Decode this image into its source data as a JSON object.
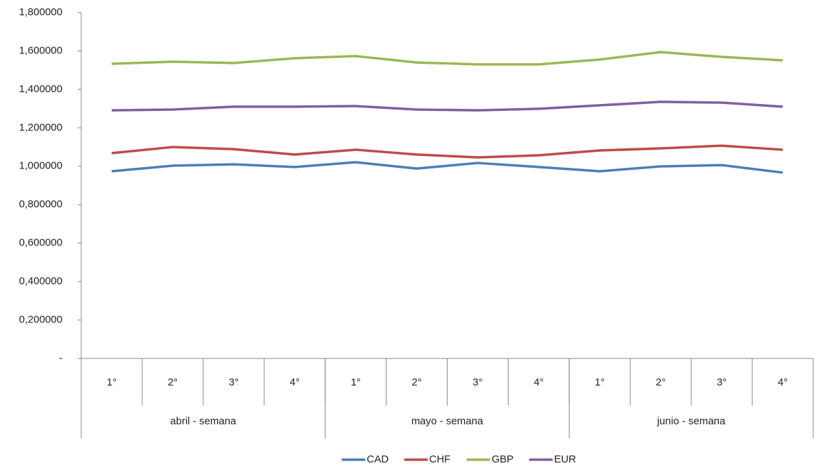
{
  "chart_data": {
    "type": "line",
    "categories": [
      "1°",
      "2°",
      "3°",
      "4°",
      "1°",
      "2°",
      "3°",
      "4°",
      "1°",
      "2°",
      "3°",
      "4°"
    ],
    "category_groups": [
      "abril - semana",
      "mayo - semana",
      "junio - semana"
    ],
    "series": [
      {
        "name": "CAD",
        "color": "#4a7ebb",
        "values": [
          0.974,
          1.003,
          1.01,
          0.996,
          1.021,
          0.988,
          1.017,
          0.996,
          0.974,
          0.999,
          1.006,
          0.967
        ]
      },
      {
        "name": "CHF",
        "color": "#be4b48",
        "values": [
          1.068,
          1.1,
          1.089,
          1.061,
          1.086,
          1.061,
          1.046,
          1.057,
          1.082,
          1.093,
          1.107,
          1.086
        ]
      },
      {
        "name": "GBP",
        "color": "#98b954",
        "values": [
          1.533,
          1.544,
          1.537,
          1.562,
          1.573,
          1.54,
          1.53,
          1.53,
          1.555,
          1.594,
          1.569,
          1.551
        ]
      },
      {
        "name": "EUR",
        "color": "#7d60a0",
        "values": [
          1.291,
          1.295,
          1.31,
          1.31,
          1.313,
          1.295,
          1.291,
          1.299,
          1.317,
          1.335,
          1.331,
          1.31
        ]
      }
    ],
    "ylim": [
      0,
      1.8
    ],
    "yticks": [
      {
        "value": 0,
        "label": "-"
      },
      {
        "value": 0.2,
        "label": "0,200000"
      },
      {
        "value": 0.4,
        "label": "0,400000"
      },
      {
        "value": 0.6,
        "label": "0,600000"
      },
      {
        "value": 0.8,
        "label": "0,800000"
      },
      {
        "value": 1.0,
        "label": "1,000000"
      },
      {
        "value": 1.2,
        "label": "1,200000"
      },
      {
        "value": 1.4,
        "label": "1,400000"
      },
      {
        "value": 1.6,
        "label": "1,600000"
      },
      {
        "value": 1.8,
        "label": "1,800000"
      }
    ],
    "grid": false,
    "legend": "bottom"
  }
}
